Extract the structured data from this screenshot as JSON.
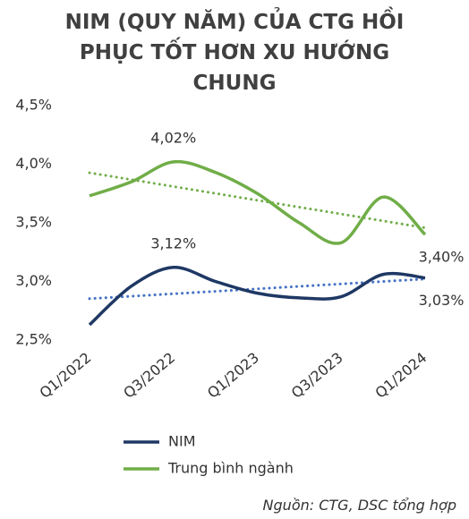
{
  "chart_data": {
    "type": "line",
    "title": "NIM (QUY NĂM) CỦA CTG HỒI PHỤC TỐT HƠN XU HƯỚNG CHUNG",
    "source": "Nguồn: CTG, DSC tổng hợp",
    "categories": [
      "Q1/2022",
      null,
      "Q3/2022",
      null,
      "Q1/2023",
      null,
      "Q3/2023",
      null,
      "Q1/2024"
    ],
    "series": [
      {
        "name": "NIM",
        "color": "#1f3864",
        "trend_color": "#4472c4",
        "values": [
          2.63,
          2.96,
          3.12,
          3.0,
          2.9,
          2.86,
          2.87,
          3.06,
          3.03
        ],
        "value_labels": [
          null,
          null,
          "3,12%",
          null,
          null,
          null,
          null,
          null,
          "3,03%"
        ]
      },
      {
        "name": "Trung bình ngành",
        "color": "#70ad47",
        "trend_color": "#70ad47",
        "values": [
          3.73,
          3.85,
          4.02,
          3.93,
          3.75,
          3.5,
          3.33,
          3.72,
          3.4
        ],
        "value_labels": [
          null,
          null,
          "4,02%",
          null,
          null,
          null,
          null,
          null,
          "3,40%"
        ]
      }
    ],
    "ylim": [
      2.5,
      4.5
    ],
    "yticks": [
      {
        "value": 2.5,
        "label": "2,5%"
      },
      {
        "value": 3.0,
        "label": "3,0%"
      },
      {
        "value": 3.5,
        "label": "3,5%"
      },
      {
        "value": 4.0,
        "label": "4,0%"
      },
      {
        "value": 4.5,
        "label": "4,5%"
      }
    ],
    "trendline": true,
    "smooth": true
  }
}
